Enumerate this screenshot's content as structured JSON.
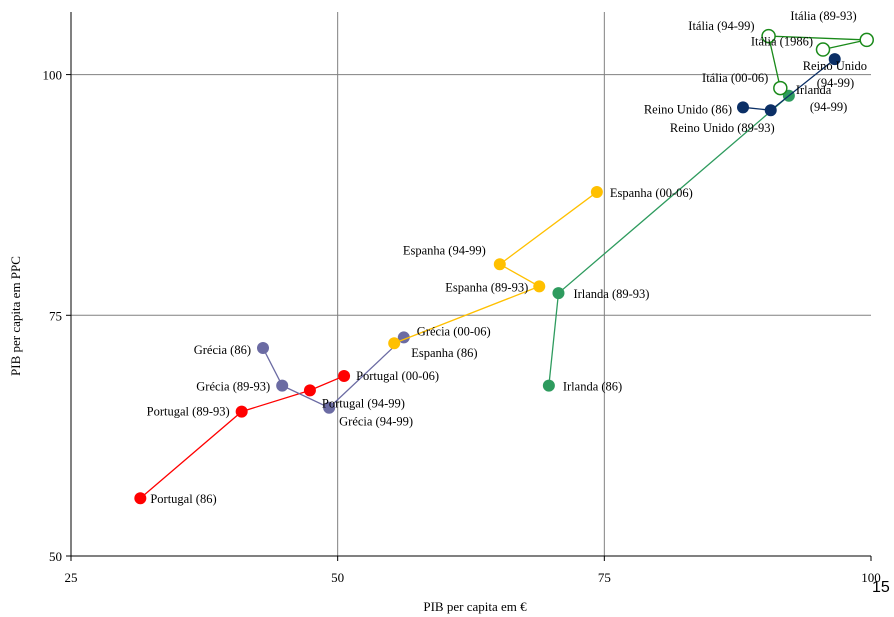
{
  "chart_data": {
    "type": "scatter",
    "title": "",
    "xlabel": "PIB per capita em €",
    "ylabel": "PIB per capita em PPC",
    "xlim": [
      25,
      100
    ],
    "ylim": [
      50,
      106.5
    ],
    "x_ticks": [
      "25",
      "50",
      "75",
      "100"
    ],
    "y_ticks": [
      "50",
      "75",
      "100"
    ],
    "grid": true,
    "colors": {
      "Portugal": "#ff0000",
      "Grécia": "#6b6ba3",
      "Espanha": "#ffc000",
      "Irlanda": "#2e9b5e",
      "Reino Unido": "#0b2f66",
      "Itália": "#1a8a1a"
    },
    "series": [
      {
        "name": "Portugal",
        "marker": "filled",
        "points": [
          {
            "label": "Portugal (86)",
            "x": 31.5,
            "y": 56.0
          },
          {
            "label": "Portugal (89-93)",
            "x": 41.0,
            "y": 65.0
          },
          {
            "label": "Portugal (94-99)",
            "x": 47.4,
            "y": 67.2
          },
          {
            "label": "Portugal (00-06)",
            "x": 50.6,
            "y": 68.7
          }
        ]
      },
      {
        "name": "Grécia",
        "marker": "filled",
        "points": [
          {
            "label": "Grécia (86)",
            "x": 43.0,
            "y": 71.6
          },
          {
            "label": "Grécia (89-93)",
            "x": 44.8,
            "y": 67.7
          },
          {
            "label": "Grécia (94-99)",
            "x": 49.2,
            "y": 65.4
          },
          {
            "label": "Grécia (00-06)",
            "x": 56.2,
            "y": 72.7
          }
        ]
      },
      {
        "name": "Espanha",
        "marker": "filled",
        "points": [
          {
            "label": "Espanha (86)",
            "x": 55.3,
            "y": 72.1
          },
          {
            "label": "Espanha (89-93)",
            "x": 68.9,
            "y": 78.0
          },
          {
            "label": "Espanha (94-99)",
            "x": 65.2,
            "y": 80.3
          },
          {
            "label": "Espanha (00-06)",
            "x": 74.3,
            "y": 87.8
          }
        ]
      },
      {
        "name": "Irlanda",
        "marker": "filled",
        "points": [
          {
            "label": "Irlanda (86)",
            "x": 69.8,
            "y": 67.7
          },
          {
            "label": "Irlanda (89-93)",
            "x": 70.7,
            "y": 77.3
          },
          {
            "label": "Irlanda (94-99)",
            "x": 92.3,
            "y": 97.8
          }
        ]
      },
      {
        "name": "Reino Unido",
        "marker": "filled",
        "points": [
          {
            "label": "Reino Unido (86)",
            "x": 88.0,
            "y": 96.6
          },
          {
            "label": "Reino Unido (89-93)",
            "x": 90.6,
            "y": 96.3
          },
          {
            "label": "Reino Unido (94-99)",
            "x": 96.6,
            "y": 101.6
          }
        ]
      },
      {
        "name": "Itália",
        "marker": "hollow",
        "points": [
          {
            "label": "Itália (1986)",
            "x": 95.5,
            "y": 102.6
          },
          {
            "label": "Itália (89-93)",
            "x": 99.6,
            "y": 103.6
          },
          {
            "label": "Itália (94-99)",
            "x": 90.4,
            "y": 104.0
          },
          {
            "label": "Itália (00-06)",
            "x": 91.5,
            "y": 98.6
          }
        ]
      }
    ],
    "label_lines": {
      "Reino Unido (94-99)": [
        "Reino Unido",
        "(94-99)"
      ],
      "Irlanda (94-99)": [
        "Irlanda",
        "(94-99)"
      ]
    }
  },
  "slide_number": "15"
}
